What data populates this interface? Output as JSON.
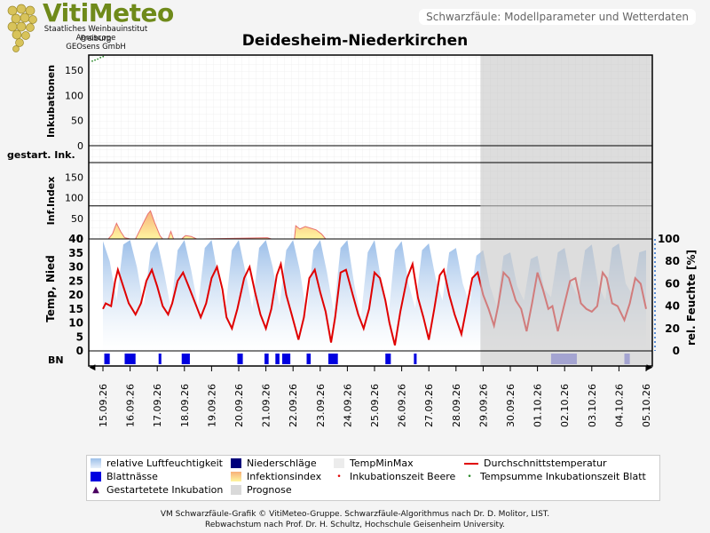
{
  "header": {
    "logo_vit": "Viti",
    "logo_meteo": "Meteo",
    "logo_lines": [
      "Staatliches Weinbauinstitut Freiburg",
      "Agroscope",
      "GEOsens GmbH"
    ],
    "info_box": "Schwarzfäule: Modellparameter und Wetterdaten"
  },
  "chart_data": {
    "type": "line",
    "title": "Deidesheim-Niederkirchen",
    "dates": [
      "15.09.26",
      "16.09.26",
      "17.09.26",
      "18.09.26",
      "19.09.26",
      "20.09.26",
      "21.09.26",
      "22.09.26",
      "23.09.26",
      "24.09.26",
      "25.09.26",
      "26.09.26",
      "27.09.26",
      "28.09.26",
      "29.09.26",
      "30.09.26",
      "01.10.26",
      "02.10.26",
      "03.10.26",
      "04.10.26",
      "05.10.26"
    ],
    "forecast_start_day": 13.9,
    "panels": {
      "incubation": {
        "ylabel": "Inkubationen",
        "yticks": [
          0,
          50,
          100,
          150
        ],
        "ylim": [
          0,
          180
        ],
        "series": [
          {
            "name": "Tempsumme Inkubationszeit Blatt",
            "x": [
              0,
              0.1,
              0.2,
              0.3,
              0.4
            ],
            "y": [
              168,
              170,
              172,
              175,
              177
            ]
          }
        ]
      },
      "started": {
        "ylabel": "gestart. Ink."
      },
      "infection_index": {
        "ylabel": "Inf.Index",
        "yticks": [
          0,
          50,
          100,
          150
        ],
        "ylim": [
          0,
          185
        ],
        "threshold": 80,
        "series": [
          {
            "name": "Infektionsindex",
            "x": [
              0.2,
              0.35,
              0.5,
              0.65,
              0.8,
              1.0,
              1.2,
              1.35,
              1.5,
              1.65,
              1.75,
              1.9,
              2.1,
              2.2,
              2.3,
              2.4,
              2.5,
              2.6,
              2.8,
              2.9,
              3.0,
              3.05,
              3.25,
              3.45,
              3.65,
              6.05,
              6.2,
              6.4,
              7.05,
              7.1,
              7.25,
              7.45,
              7.65,
              7.85,
              8.05,
              8.2
            ],
            "y": [
              0,
              12,
              38,
              18,
              3,
              0,
              0,
              20,
              40,
              60,
              68,
              40,
              8,
              0,
              0,
              0,
              18,
              0,
              0,
              0,
              6,
              8,
              6,
              0,
              0,
              3,
              0,
              0,
              0,
              32,
              24,
              30,
              26,
              22,
              12,
              0
            ]
          }
        ]
      },
      "weather": {
        "ylabel_left": "Temp, Nied",
        "yticks_left": [
          0,
          5,
          10,
          15,
          20,
          25,
          30,
          35,
          40
        ],
        "ylim_left": [
          0,
          40
        ],
        "ylabel_right": "rel. Feuchte [%]",
        "yticks_right": [
          0,
          20,
          40,
          60,
          80,
          100
        ],
        "ylim_right": [
          0,
          100
        ],
        "series": [
          {
            "name": "Durchschnittstemperatur",
            "color": "#e00000",
            "x": [
              0,
              0.1,
              0.3,
              0.45,
              0.55,
              0.75,
              0.95,
              1.2,
              1.4,
              1.6,
              1.8,
              2.0,
              2.2,
              2.4,
              2.55,
              2.75,
              2.95,
              3.2,
              3.4,
              3.6,
              3.8,
              4.0,
              4.2,
              4.4,
              4.55,
              4.75,
              4.95,
              5.2,
              5.4,
              5.6,
              5.8,
              6.0,
              6.2,
              6.4,
              6.55,
              6.75,
              6.95,
              7.2,
              7.4,
              7.6,
              7.8,
              8.0,
              8.2,
              8.4,
              8.55,
              8.75,
              8.95,
              9.2,
              9.4,
              9.6,
              9.8,
              10.0,
              10.2,
              10.4,
              10.55,
              10.75,
              10.95,
              11.2,
              11.4,
              11.6,
              11.8,
              12.0,
              12.2,
              12.4,
              12.55,
              12.75,
              12.95,
              13.2,
              13.4,
              13.6,
              13.8,
              14.0,
              14.2,
              14.4,
              14.55,
              14.75,
              14.95,
              15.2,
              15.4,
              15.6,
              15.8,
              16.0,
              16.2,
              16.4,
              16.55,
              16.75,
              16.95,
              17.2,
              17.4,
              17.6,
              17.8,
              18.0,
              18.2,
              18.4,
              18.55,
              18.75,
              18.95,
              19.2,
              19.4,
              19.6,
              19.8,
              20.0
            ],
            "y": [
              15,
              17,
              16,
              25,
              29,
              23,
              17,
              13,
              17,
              25,
              29,
              23,
              16,
              13,
              17,
              25,
              28,
              22,
              17,
              12,
              17,
              26,
              30,
              22,
              12,
              8,
              15,
              26,
              30,
              21,
              13,
              8,
              15,
              27,
              31,
              20,
              13,
              4,
              12,
              26,
              29,
              21,
              14,
              3,
              12,
              28,
              29,
              20,
              13,
              8,
              15,
              28,
              26,
              18,
              10,
              2,
              14,
              26,
              31,
              19,
              12,
              4,
              15,
              27,
              29,
              20,
              13,
              6,
              16,
              26,
              28,
              20,
              15,
              9,
              16,
              28,
              26,
              18,
              15,
              7,
              17,
              28,
              22,
              15,
              16,
              7,
              15,
              25,
              26,
              17,
              15,
              14,
              16,
              28,
              26,
              17,
              16,
              11,
              17,
              26,
              24,
              15
            ]
          },
          {
            "name": "relative Luftfeuchtigkeit",
            "color": "#a9c8ec",
            "x": [
              0,
              0.25,
              0.5,
              0.75,
              1.0,
              1.25,
              1.5,
              1.75,
              2.0,
              2.25,
              2.5,
              2.75,
              3.0,
              3.25,
              3.5,
              3.75,
              4.0,
              4.25,
              4.5,
              4.75,
              5.0,
              5.25,
              5.5,
              5.75,
              6.0,
              6.25,
              6.5,
              6.75,
              7.0,
              7.25,
              7.5,
              7.75,
              8.0,
              8.25,
              8.5,
              8.75,
              9.0,
              9.25,
              9.5,
              9.75,
              10.0,
              10.25,
              10.5,
              10.75,
              11.0,
              11.25,
              11.5,
              11.75,
              12.0,
              12.25,
              12.5,
              12.75,
              13.0,
              13.25,
              13.5,
              13.75,
              14.0,
              14.25,
              14.5,
              14.75,
              15.0,
              15.25,
              15.5,
              15.75,
              16.0,
              16.25,
              16.5,
              16.75,
              17.0,
              17.25,
              17.5,
              17.75,
              18.0,
              18.25,
              18.5,
              18.75,
              19.0,
              19.25,
              19.5,
              19.75,
              20.0
            ],
            "y": [
              98,
              80,
              45,
              95,
              99,
              75,
              40,
              88,
              98,
              70,
              38,
              90,
              99,
              72,
              40,
              92,
              99,
              65,
              35,
              90,
              99,
              70,
              38,
              92,
              99,
              75,
              40,
              90,
              99,
              72,
              32,
              90,
              99,
              70,
              35,
              92,
              99,
              60,
              30,
              88,
              99,
              62,
              28,
              90,
              98,
              60,
              38,
              90,
              96,
              65,
              45,
              88,
              92,
              60,
              42,
              85,
              90,
              58,
              40,
              85,
              88,
              58,
              45,
              82,
              85,
              55,
              48,
              88,
              92,
              60,
              48,
              90,
              95,
              58,
              45,
              92,
              96,
              60,
              50,
              88,
              90
            ]
          }
        ]
      },
      "leaf_wetness": {
        "ylabel": "BN",
        "intervals": [
          [
            0.05,
            0.25
          ],
          [
            0.8,
            1.2
          ],
          [
            2.05,
            2.15
          ],
          [
            2.9,
            3.2
          ],
          [
            4.95,
            5.15
          ],
          [
            5.95,
            6.1
          ],
          [
            6.35,
            6.5
          ],
          [
            6.6,
            6.9
          ],
          [
            7.5,
            7.65
          ],
          [
            8.3,
            8.65
          ],
          [
            10.4,
            10.6
          ],
          [
            11.45,
            11.55
          ]
        ],
        "forecast_intervals": [
          [
            16.5,
            17.45
          ],
          [
            19.2,
            19.4
          ]
        ]
      }
    },
    "legend": [
      {
        "label": "relative Luftfeuchtigkeit",
        "icon": "humidity-swatch"
      },
      {
        "label": "Niederschläge",
        "icon": "precip-swatch"
      },
      {
        "label": "TempMinMax",
        "icon": "tempminmax-swatch"
      },
      {
        "label": "Durchschnittstemperatur",
        "icon": "red-line"
      },
      {
        "label": "Blattnässe",
        "icon": "wetness-swatch"
      },
      {
        "label": "Infektionsindex",
        "icon": "index-swatch"
      },
      {
        "label": "Inkubationszeit Beere",
        "icon": "red-dot"
      },
      {
        "label": "Tempsumme Inkubationszeit Blatt",
        "icon": "green-dot"
      },
      {
        "label": "Gestartetete Inkubation",
        "icon": "triangle"
      },
      {
        "label": "Prognose",
        "icon": "forecast-swatch"
      }
    ]
  },
  "footer": {
    "line1": "VM Schwarzfäule-Grafik © VitiMeteo-Gruppe. Schwarzfäule-Algorithmus nach Dr. D. Molitor, LIST.",
    "line2": "Rebwachstum nach Prof. Dr. H. Schultz, Hochschule Geisenheim University."
  }
}
